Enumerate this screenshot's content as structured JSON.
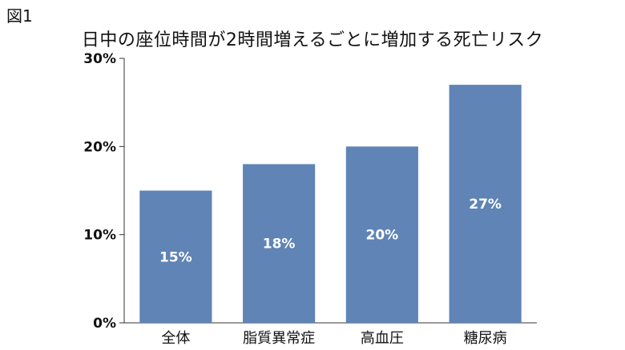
{
  "figure_label": "図1",
  "chart_data": {
    "type": "bar",
    "title": "日中の座位時間が2時間増えるごとに増加する死亡リスク",
    "categories": [
      "全体",
      "脂質異常症",
      "高血圧",
      "糖尿病"
    ],
    "values": [
      15,
      18,
      20,
      27
    ],
    "data_labels": [
      "15%",
      "18%",
      "20%",
      "27%"
    ],
    "y_ticks": [
      0,
      10,
      20,
      30
    ],
    "y_tick_labels": [
      "0%",
      "10%",
      "20%",
      "30%"
    ],
    "ylim": [
      0,
      30
    ],
    "xlabel": "",
    "ylabel": "",
    "grid": false,
    "legend": "none",
    "bar_color": "#5f84b5"
  }
}
